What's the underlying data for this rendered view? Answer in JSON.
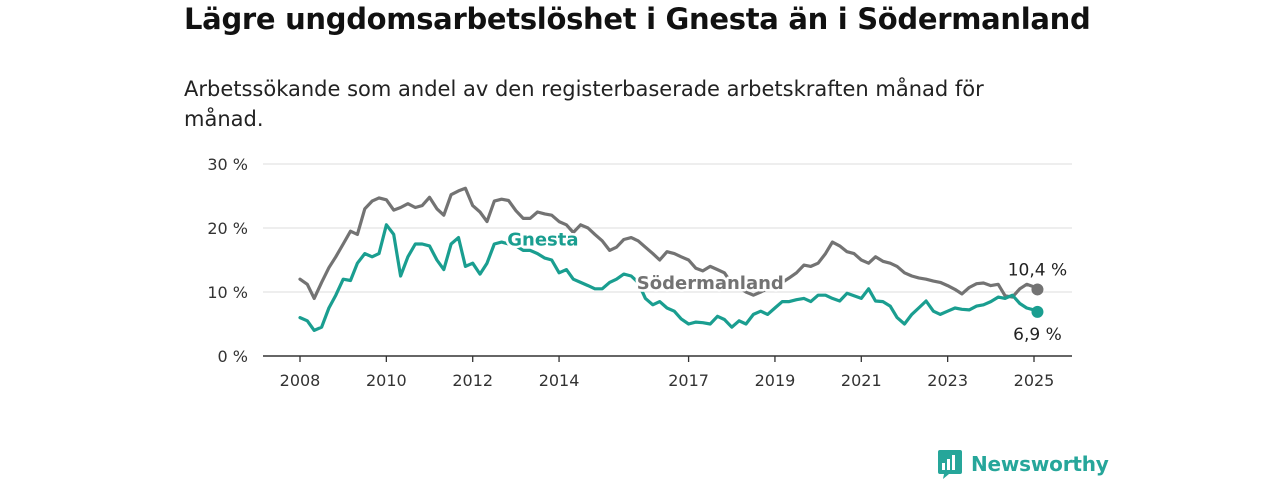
{
  "title": "Lägre ungdomsarbetslöshet i Gnesta än i Södermanland",
  "subtitle": "Arbetssökande som andel av den registerbaserade arbetskraften månad för månad.",
  "brand": {
    "name": "Newsworthy",
    "logo_icon": "bar-chart-speech-bubble-icon",
    "color": "#26a69a"
  },
  "chart_data": {
    "type": "line",
    "ylim": [
      0,
      30
    ],
    "xlim": [
      2007.8,
      2025.85
    ],
    "y_ticks": [
      {
        "value": 0,
        "label": "0 %"
      },
      {
        "value": 10,
        "label": "10 %"
      },
      {
        "value": 20,
        "label": "20 %"
      },
      {
        "value": 30,
        "label": "30 %"
      }
    ],
    "x_ticks": [
      {
        "value": 2008,
        "label": "2008"
      },
      {
        "value": 2010,
        "label": "2010"
      },
      {
        "value": 2012,
        "label": "2012"
      },
      {
        "value": 2014,
        "label": "2014"
      },
      {
        "value": 2017,
        "label": "2017"
      },
      {
        "value": 2019,
        "label": "2019"
      },
      {
        "value": 2021,
        "label": "2021"
      },
      {
        "value": 2023,
        "label": "2023"
      },
      {
        "value": 2025,
        "label": "2025"
      }
    ],
    "grid": true,
    "series": [
      {
        "name": "Södermanland",
        "color": "#737373",
        "label_at": [
          2015.8,
          10.5
        ],
        "end_label": "10,4 %",
        "x": [
          2008.0,
          2008.17,
          2008.33,
          2008.5,
          2008.67,
          2008.83,
          2009.0,
          2009.17,
          2009.33,
          2009.5,
          2009.67,
          2009.83,
          2010.0,
          2010.17,
          2010.33,
          2010.5,
          2010.67,
          2010.83,
          2011.0,
          2011.17,
          2011.33,
          2011.5,
          2011.67,
          2011.83,
          2012.0,
          2012.17,
          2012.33,
          2012.5,
          2012.67,
          2012.83,
          2013.0,
          2013.17,
          2013.33,
          2013.5,
          2013.67,
          2013.83,
          2014.0,
          2014.17,
          2014.33,
          2014.5,
          2014.67,
          2014.83,
          2015.0,
          2015.17,
          2015.33,
          2015.5,
          2015.67,
          2015.83,
          2016.0,
          2016.17,
          2016.33,
          2016.5,
          2016.67,
          2016.83,
          2017.0,
          2017.17,
          2017.33,
          2017.5,
          2017.67,
          2017.83,
          2018.0,
          2018.17,
          2018.33,
          2018.5,
          2018.67,
          2018.83,
          2019.0,
          2019.17,
          2019.33,
          2019.5,
          2019.67,
          2019.83,
          2020.0,
          2020.17,
          2020.33,
          2020.5,
          2020.67,
          2020.83,
          2021.0,
          2021.17,
          2021.33,
          2021.5,
          2021.67,
          2021.83,
          2022.0,
          2022.17,
          2022.33,
          2022.5,
          2022.67,
          2022.83,
          2023.0,
          2023.17,
          2023.33,
          2023.5,
          2023.67,
          2023.83,
          2024.0,
          2024.17,
          2024.33,
          2024.5,
          2024.67,
          2024.83,
          2025.0,
          2025.08
        ],
        "values": [
          12.0,
          11.2,
          9.0,
          11.5,
          13.8,
          15.5,
          17.5,
          19.5,
          19.0,
          23.0,
          24.2,
          24.7,
          24.4,
          22.8,
          23.2,
          23.8,
          23.2,
          23.5,
          24.8,
          23.0,
          22.0,
          25.2,
          25.8,
          26.2,
          23.5,
          22.5,
          21.0,
          24.2,
          24.5,
          24.3,
          22.7,
          21.5,
          21.5,
          22.5,
          22.2,
          22.0,
          21.0,
          20.5,
          19.3,
          20.5,
          20.0,
          19.0,
          18.0,
          16.5,
          17.0,
          18.2,
          18.5,
          18.0,
          17.0,
          16.0,
          15.0,
          16.3,
          16.0,
          15.5,
          15.0,
          13.7,
          13.3,
          14.0,
          13.5,
          13.0,
          11.3,
          10.7,
          10.0,
          9.5,
          10.0,
          10.5,
          11.0,
          11.5,
          12.2,
          13.0,
          14.2,
          14.0,
          14.5,
          16.0,
          17.8,
          17.2,
          16.3,
          16.0,
          15.0,
          14.5,
          15.5,
          14.8,
          14.5,
          14.0,
          13.0,
          12.5,
          12.2,
          12.0,
          11.7,
          11.5,
          11.0,
          10.4,
          9.7,
          10.7,
          11.3,
          11.4,
          11.0,
          11.2,
          9.4,
          9.2,
          10.5,
          11.2,
          10.8,
          10.4
        ]
      },
      {
        "name": "Gnesta",
        "color": "#1a9e90",
        "label_at": [
          2012.8,
          17.3
        ],
        "end_label": "6,9 %",
        "x": [
          2008.0,
          2008.17,
          2008.33,
          2008.5,
          2008.67,
          2008.83,
          2009.0,
          2009.17,
          2009.33,
          2009.5,
          2009.67,
          2009.83,
          2010.0,
          2010.17,
          2010.33,
          2010.5,
          2010.67,
          2010.83,
          2011.0,
          2011.17,
          2011.33,
          2011.5,
          2011.67,
          2011.83,
          2012.0,
          2012.17,
          2012.33,
          2012.5,
          2012.67,
          2012.83,
          2013.0,
          2013.17,
          2013.33,
          2013.5,
          2013.67,
          2013.83,
          2014.0,
          2014.17,
          2014.33,
          2014.5,
          2014.67,
          2014.83,
          2015.0,
          2015.17,
          2015.33,
          2015.5,
          2015.67,
          2015.83,
          2016.0,
          2016.17,
          2016.33,
          2016.5,
          2016.67,
          2016.83,
          2017.0,
          2017.17,
          2017.33,
          2017.5,
          2017.67,
          2017.83,
          2018.0,
          2018.17,
          2018.33,
          2018.5,
          2018.67,
          2018.83,
          2019.0,
          2019.17,
          2019.33,
          2019.5,
          2019.67,
          2019.83,
          2020.0,
          2020.17,
          2020.33,
          2020.5,
          2020.67,
          2020.83,
          2021.0,
          2021.17,
          2021.33,
          2021.5,
          2021.67,
          2021.83,
          2022.0,
          2022.17,
          2022.33,
          2022.5,
          2022.67,
          2022.83,
          2023.0,
          2023.17,
          2023.33,
          2023.5,
          2023.67,
          2023.83,
          2024.0,
          2024.17,
          2024.33,
          2024.5,
          2024.67,
          2024.83,
          2025.0,
          2025.08
        ],
        "values": [
          6.0,
          5.5,
          4.0,
          4.5,
          7.5,
          9.5,
          12.0,
          11.8,
          14.5,
          16.0,
          15.5,
          16.0,
          20.5,
          19.0,
          12.5,
          15.5,
          17.5,
          17.5,
          17.2,
          15.0,
          13.5,
          17.5,
          18.5,
          14.0,
          14.5,
          12.8,
          14.5,
          17.5,
          17.8,
          17.5,
          17.2,
          16.5,
          16.5,
          16.0,
          15.3,
          15.0,
          13.0,
          13.5,
          12.0,
          11.5,
          11.0,
          10.5,
          10.5,
          11.5,
          12.0,
          12.8,
          12.5,
          11.5,
          9.0,
          8.0,
          8.5,
          7.5,
          7.0,
          5.8,
          5.0,
          5.3,
          5.2,
          5.0,
          6.2,
          5.7,
          4.5,
          5.5,
          5.0,
          6.5,
          7.0,
          6.5,
          7.5,
          8.5,
          8.5,
          8.8,
          9.0,
          8.5,
          9.5,
          9.5,
          9.0,
          8.6,
          9.8,
          9.4,
          9.0,
          10.5,
          8.6,
          8.5,
          7.8,
          6.0,
          5.0,
          6.5,
          7.5,
          8.6,
          7.0,
          6.5,
          7.0,
          7.5,
          7.3,
          7.2,
          7.8,
          8.0,
          8.5,
          9.2,
          9.0,
          9.5,
          8.2,
          7.5,
          7.2,
          6.9
        ]
      }
    ]
  }
}
